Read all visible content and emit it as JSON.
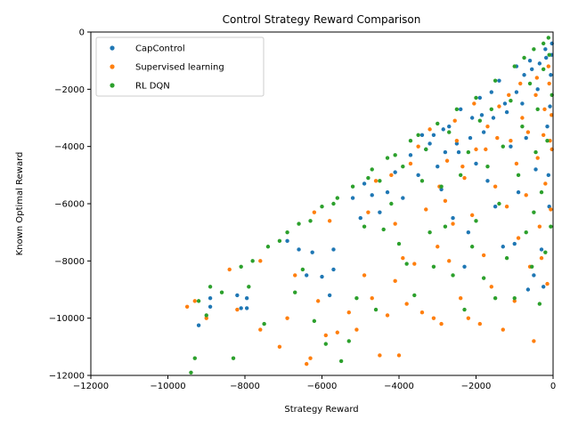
{
  "chart_data": {
    "type": "scatter",
    "title": "Control Strategy Reward Comparison",
    "xlabel": "Strategy Reward",
    "ylabel": "Known Optimal Reward",
    "xlim": [
      -12000,
      0
    ],
    "ylim": [
      -12000,
      0
    ],
    "xticks": [
      -12000,
      -10000,
      -8000,
      -6000,
      -4000,
      -2000,
      0
    ],
    "yticks": [
      -12000,
      -10000,
      -8000,
      -6000,
      -4000,
      -2000,
      0
    ],
    "xtick_labels": [
      "−12000",
      "−10000",
      "−8000",
      "−6000",
      "−4000",
      "−2000",
      "0"
    ],
    "ytick_labels": [
      "−12000",
      "−10000",
      "−8000",
      "−6000",
      "−4000",
      "−2000",
      "0"
    ],
    "grid": false,
    "legend_position": "upper-left",
    "series": [
      {
        "name": "CapControl",
        "color": "#1f77b4",
        "points": [
          [
            -9200,
            -10250
          ],
          [
            -8900,
            -9300
          ],
          [
            -8900,
            -9600
          ],
          [
            -8200,
            -9200
          ],
          [
            -8100,
            -9650
          ],
          [
            -7950,
            -9650
          ],
          [
            -7950,
            -9300
          ],
          [
            -6900,
            -7300
          ],
          [
            -6600,
            -7600
          ],
          [
            -6400,
            -8500
          ],
          [
            -6250,
            -7700
          ],
          [
            -6000,
            -8550
          ],
          [
            -5800,
            -9200
          ],
          [
            -5700,
            -8300
          ],
          [
            -5700,
            -7600
          ],
          [
            -5200,
            -5800
          ],
          [
            -5000,
            -6500
          ],
          [
            -4900,
            -5300
          ],
          [
            -4700,
            -5700
          ],
          [
            -4500,
            -6300
          ],
          [
            -4300,
            -5600
          ],
          [
            -4100,
            -4900
          ],
          [
            -3900,
            -5800
          ],
          [
            -3700,
            -4300
          ],
          [
            -3500,
            -5000
          ],
          [
            -3400,
            -3600
          ],
          [
            -3300,
            -4100
          ],
          [
            -3100,
            -3600
          ],
          [
            -3000,
            -4700
          ],
          [
            -2900,
            -5500
          ],
          [
            -2800,
            -4200
          ],
          [
            -2700,
            -3300
          ],
          [
            -2600,
            -6500
          ],
          [
            -2500,
            -3900
          ],
          [
            -2400,
            -2700
          ],
          [
            -2300,
            -8200
          ],
          [
            -2200,
            -7000
          ],
          [
            -2100,
            -3000
          ],
          [
            -2000,
            -4600
          ],
          [
            -1900,
            -2300
          ],
          [
            -1800,
            -3500
          ],
          [
            -1700,
            -5200
          ],
          [
            -1600,
            -2100
          ],
          [
            -1500,
            -6100
          ],
          [
            -1400,
            -1700
          ],
          [
            -1300,
            -7500
          ],
          [
            -1200,
            -2800
          ],
          [
            -1100,
            -4000
          ],
          [
            -1000,
            -7400
          ],
          [
            -950,
            -1200
          ],
          [
            -900,
            -5600
          ],
          [
            -800,
            -2500
          ],
          [
            -700,
            -3700
          ],
          [
            -650,
            -9000
          ],
          [
            -600,
            -1000
          ],
          [
            -500,
            -8500
          ],
          [
            -450,
            -4800
          ],
          [
            -400,
            -2000
          ],
          [
            -300,
            -7600
          ],
          [
            -250,
            -8900
          ],
          [
            -200,
            -600
          ],
          [
            -150,
            -3300
          ],
          [
            -100,
            -6100
          ],
          [
            -60,
            -1500
          ],
          [
            -30,
            -400
          ],
          [
            -3200,
            -3900
          ],
          [
            -2850,
            -3400
          ],
          [
            -2450,
            -4200
          ],
          [
            -2150,
            -3700
          ],
          [
            -1850,
            -2900
          ],
          [
            -1550,
            -3000
          ],
          [
            -1250,
            -2500
          ],
          [
            -950,
            -2100
          ],
          [
            -750,
            -1500
          ],
          [
            -550,
            -1300
          ],
          [
            -350,
            -1100
          ],
          [
            -180,
            -900
          ],
          [
            -120,
            -5000
          ],
          [
            -80,
            -2600
          ],
          [
            -40,
            -800
          ]
        ]
      },
      {
        "name": "Supervised learning",
        "color": "#ff7f0e",
        "points": [
          [
            -9500,
            -9600
          ],
          [
            -9300,
            -9400
          ],
          [
            -9000,
            -10000
          ],
          [
            -8400,
            -8300
          ],
          [
            -8200,
            -9700
          ],
          [
            -7600,
            -8000
          ],
          [
            -7600,
            -10400
          ],
          [
            -7100,
            -11000
          ],
          [
            -6900,
            -10000
          ],
          [
            -6700,
            -8500
          ],
          [
            -6400,
            -11600
          ],
          [
            -6300,
            -11400
          ],
          [
            -6100,
            -9400
          ],
          [
            -5900,
            -10600
          ],
          [
            -5600,
            -10500
          ],
          [
            -5300,
            -9800
          ],
          [
            -5100,
            -10400
          ],
          [
            -4900,
            -8500
          ],
          [
            -4700,
            -9300
          ],
          [
            -4500,
            -11300
          ],
          [
            -4300,
            -9900
          ],
          [
            -4100,
            -8700
          ],
          [
            -4000,
            -11300
          ],
          [
            -3900,
            -7900
          ],
          [
            -3800,
            -9500
          ],
          [
            -3600,
            -8100
          ],
          [
            -3400,
            -9800
          ],
          [
            -3300,
            -6200
          ],
          [
            -3100,
            -10000
          ],
          [
            -3000,
            -7500
          ],
          [
            -2900,
            -10200
          ],
          [
            -2800,
            -5900
          ],
          [
            -2700,
            -8000
          ],
          [
            -2600,
            -6700
          ],
          [
            -2500,
            -3800
          ],
          [
            -2400,
            -9300
          ],
          [
            -2300,
            -5100
          ],
          [
            -2200,
            -10000
          ],
          [
            -2100,
            -6400
          ],
          [
            -2000,
            -4100
          ],
          [
            -1900,
            -10200
          ],
          [
            -1800,
            -7800
          ],
          [
            -1700,
            -3300
          ],
          [
            -1600,
            -8900
          ],
          [
            -1500,
            -5400
          ],
          [
            -1400,
            -2600
          ],
          [
            -1300,
            -10400
          ],
          [
            -1200,
            -6100
          ],
          [
            -1100,
            -3800
          ],
          [
            -1000,
            -9400
          ],
          [
            -950,
            -4600
          ],
          [
            -900,
            -7200
          ],
          [
            -800,
            -3000
          ],
          [
            -700,
            -5700
          ],
          [
            -600,
            -8200
          ],
          [
            -500,
            -10800
          ],
          [
            -450,
            -2200
          ],
          [
            -400,
            -4400
          ],
          [
            -350,
            -6800
          ],
          [
            -300,
            -7900
          ],
          [
            -250,
            -3600
          ],
          [
            -200,
            -5300
          ],
          [
            -150,
            -8800
          ],
          [
            -100,
            -1800
          ],
          [
            -60,
            -6200
          ],
          [
            -30,
            -4100
          ],
          [
            -3700,
            -4600
          ],
          [
            -3500,
            -4000
          ],
          [
            -3200,
            -3400
          ],
          [
            -2950,
            -5400
          ],
          [
            -2750,
            -4500
          ],
          [
            -2550,
            -3100
          ],
          [
            -2350,
            -4700
          ],
          [
            -2050,
            -2500
          ],
          [
            -1750,
            -4100
          ],
          [
            -1450,
            -3700
          ],
          [
            -1150,
            -2200
          ],
          [
            -850,
            -1800
          ],
          [
            -650,
            -3500
          ],
          [
            -420,
            -1600
          ],
          [
            -220,
            -2700
          ],
          [
            -120,
            -1200
          ],
          [
            -80,
            -3800
          ],
          [
            -40,
            -2900
          ],
          [
            -4800,
            -6300
          ],
          [
            -4600,
            -5200
          ],
          [
            -4200,
            -5000
          ],
          [
            -4100,
            -6700
          ],
          [
            -5800,
            -6600
          ],
          [
            -6200,
            -6300
          ]
        ]
      },
      {
        "name": "RL DQN",
        "color": "#2ca02c",
        "points": [
          [
            -9400,
            -11900
          ],
          [
            -9300,
            -11400
          ],
          [
            -9000,
            -9900
          ],
          [
            -8900,
            -8900
          ],
          [
            -8300,
            -11400
          ],
          [
            -8100,
            -8200
          ],
          [
            -7900,
            -8900
          ],
          [
            -7500,
            -10200
          ],
          [
            -7100,
            -7300
          ],
          [
            -6900,
            -7000
          ],
          [
            -6700,
            -9100
          ],
          [
            -6500,
            -8300
          ],
          [
            -6200,
            -10100
          ],
          [
            -5900,
            -10900
          ],
          [
            -5700,
            -6000
          ],
          [
            -5500,
            -11500
          ],
          [
            -5300,
            -10800
          ],
          [
            -5100,
            -9300
          ],
          [
            -4900,
            -6800
          ],
          [
            -4600,
            -9700
          ],
          [
            -4400,
            -6900
          ],
          [
            -4200,
            -6000
          ],
          [
            -4000,
            -7400
          ],
          [
            -3800,
            -8100
          ],
          [
            -3600,
            -9200
          ],
          [
            -3400,
            -5200
          ],
          [
            -3200,
            -7000
          ],
          [
            -3100,
            -8200
          ],
          [
            -2900,
            -5400
          ],
          [
            -2800,
            -6800
          ],
          [
            -2700,
            -3500
          ],
          [
            -2600,
            -8500
          ],
          [
            -2400,
            -5000
          ],
          [
            -2300,
            -9700
          ],
          [
            -2200,
            -4200
          ],
          [
            -2100,
            -7500
          ],
          [
            -2000,
            -6600
          ],
          [
            -1900,
            -3100
          ],
          [
            -1800,
            -8600
          ],
          [
            -1700,
            -4700
          ],
          [
            -1600,
            -2700
          ],
          [
            -1500,
            -9300
          ],
          [
            -1400,
            -6000
          ],
          [
            -1300,
            -4000
          ],
          [
            -1200,
            -7900
          ],
          [
            -1100,
            -2400
          ],
          [
            -1000,
            -9300
          ],
          [
            -900,
            -5000
          ],
          [
            -800,
            -3300
          ],
          [
            -700,
            -7000
          ],
          [
            -600,
            -1800
          ],
          [
            -550,
            -8200
          ],
          [
            -500,
            -6300
          ],
          [
            -450,
            -4200
          ],
          [
            -400,
            -2700
          ],
          [
            -350,
            -9500
          ],
          [
            -300,
            -5600
          ],
          [
            -250,
            -1300
          ],
          [
            -200,
            -7700
          ],
          [
            -150,
            -3800
          ],
          [
            -100,
            -800
          ],
          [
            -60,
            -6800
          ],
          [
            -30,
            -2200
          ],
          [
            -4700,
            -4800
          ],
          [
            -4500,
            -5200
          ],
          [
            -4300,
            -4400
          ],
          [
            -4100,
            -4300
          ],
          [
            -3900,
            -4700
          ],
          [
            -3700,
            -3800
          ],
          [
            -3500,
            -3600
          ],
          [
            -3300,
            -4100
          ],
          [
            -3000,
            -3200
          ],
          [
            -2500,
            -2700
          ],
          [
            -2000,
            -2300
          ],
          [
            -1500,
            -1700
          ],
          [
            -1000,
            -1200
          ],
          [
            -750,
            -900
          ],
          [
            -500,
            -600
          ],
          [
            -250,
            -400
          ],
          [
            -120,
            -200
          ],
          [
            -6300,
            -6600
          ],
          [
            -6000,
            -6100
          ],
          [
            -5600,
            -5800
          ],
          [
            -5200,
            -5400
          ],
          [
            -4800,
            -5100
          ],
          [
            -7400,
            -7500
          ],
          [
            -7800,
            -8000
          ],
          [
            -8600,
            -9100
          ],
          [
            -9200,
            -9400
          ],
          [
            -6600,
            -6700
          ]
        ]
      }
    ],
    "diagonal_band_note": ""
  }
}
